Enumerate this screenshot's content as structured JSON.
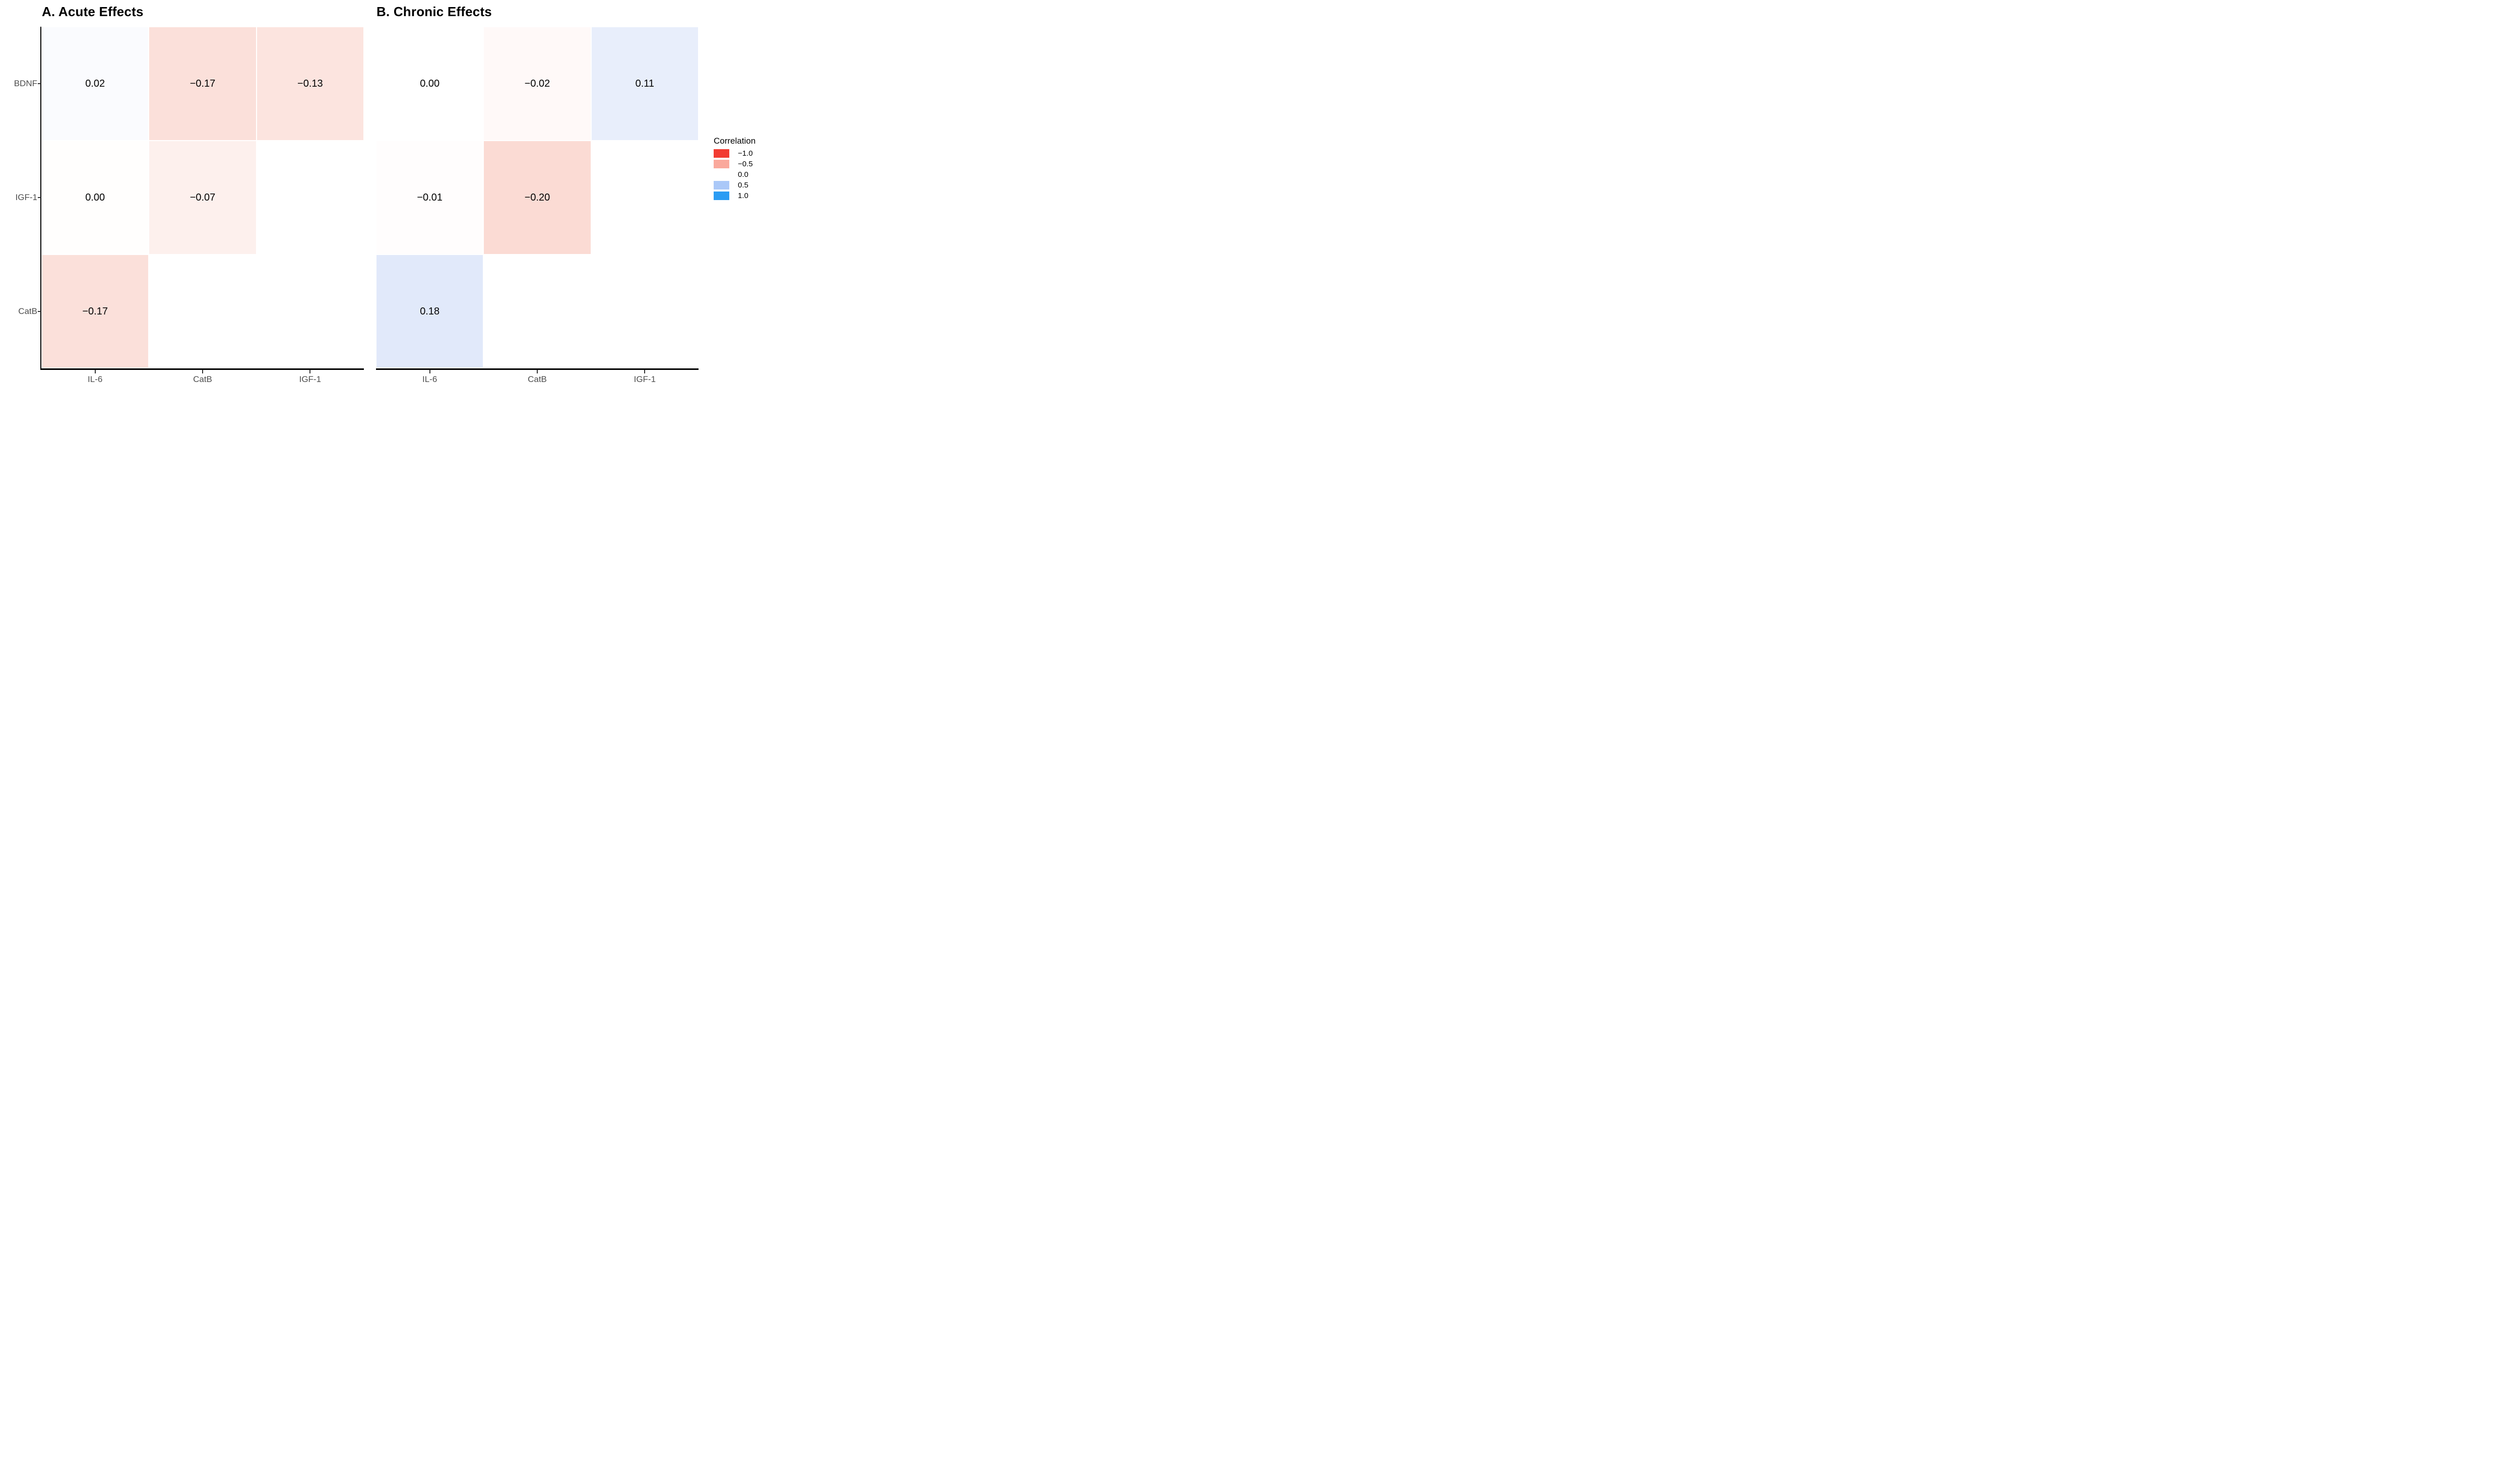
{
  "figure": {
    "background": "#FFFFFF"
  },
  "chart_data": [
    {
      "type": "heatmap",
      "panel": "A",
      "title": "A. Acute Effects",
      "x_labels": [
        "IL-6",
        "CatB",
        "IGF-1"
      ],
      "y_labels": [
        "BDNF",
        "IGF-1",
        "CatB"
      ],
      "show_y_labels": true,
      "show_y_axis_line": true,
      "values": [
        [
          0.02,
          -0.17,
          -0.13
        ],
        [
          0.0,
          -0.07,
          null
        ],
        [
          -0.17,
          null,
          null
        ]
      ],
      "value_labels": [
        [
          "0.02",
          "−0.17",
          "−0.13"
        ],
        [
          "0.00",
          "−0.07",
          ""
        ],
        [
          "−0.17",
          "",
          ""
        ]
      ],
      "cell_colors": [
        [
          "#FAFBFE",
          "#FBE0DA",
          "#FCE4DF"
        ],
        [
          "#FFFEFD",
          "#FDF0ED",
          ""
        ],
        [
          "#FBE0DA",
          "",
          ""
        ]
      ]
    },
    {
      "type": "heatmap",
      "panel": "B",
      "title": "B. Chronic Effects",
      "x_labels": [
        "IL-6",
        "CatB",
        "IGF-1"
      ],
      "y_labels": [
        "BDNF",
        "IGF-1",
        "CatB"
      ],
      "show_y_labels": false,
      "show_y_axis_line": false,
      "values": [
        [
          0.0,
          -0.02,
          0.11
        ],
        [
          -0.01,
          -0.2,
          null
        ],
        [
          0.18,
          null,
          null
        ]
      ],
      "value_labels": [
        [
          "0.00",
          "−0.02",
          "0.11"
        ],
        [
          "−0.01",
          "−0.20",
          ""
        ],
        [
          "0.18",
          "",
          ""
        ]
      ],
      "cell_colors": [
        [
          "#FFFFFF",
          "#FFF9F8",
          "#E8EEFB"
        ],
        [
          "#FFFDFD",
          "#FBDBD4",
          ""
        ],
        [
          "#E1E9FA",
          "",
          ""
        ]
      ]
    }
  ],
  "legend": {
    "title": "Correlation",
    "position": "right",
    "entries": [
      {
        "label": "−1.0",
        "color": "#F23B32"
      },
      {
        "label": "−0.5",
        "color": "#FAA99C"
      },
      {
        "label": "0.0",
        "color": null
      },
      {
        "label": "0.5",
        "color": "#AAC8F8"
      },
      {
        "label": "1.0",
        "color": "#2B9CF3"
      }
    ]
  },
  "styles": {
    "axis_line_color": "#000000",
    "tick_color": "#333333",
    "axis_label_color": "#4D4D4D",
    "value_text_color": "#000000",
    "title_color": "#000000"
  }
}
